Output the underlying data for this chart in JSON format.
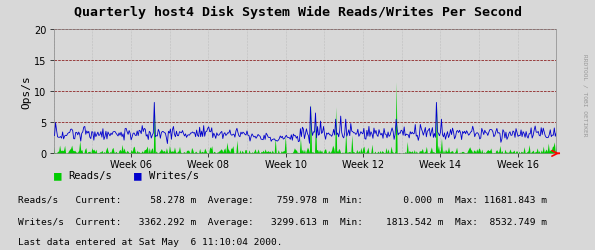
{
  "title": "Quarterly host4 Disk System Wide Reads/Writes Per Second",
  "ylabel": "Ops/s",
  "ylim": [
    0,
    20
  ],
  "yticks": [
    0,
    5,
    10,
    15,
    20
  ],
  "bg_color": "#d8d8d8",
  "plot_bg_color": "#d8d8d8",
  "grid_color_h": "#800000",
  "grid_color_v": "#aaaaaa",
  "reads_color": "#00cc00",
  "writes_color": "#0000cc",
  "week_labels": [
    "Week 06",
    "Week 08",
    "Week 10",
    "Week 12",
    "Week 14",
    "Week 16"
  ],
  "right_label": "RRDTOOL / TOBI OETIKER",
  "legend_reads": "Reads/s",
  "legend_writes": "Writes/s",
  "stats_reads": "Reads/s   Current:     58.278 m  Average:    759.978 m  Min:       0.000 m  Max: 11681.843 m",
  "stats_writes": "Writes/s  Current:   3362.292 m  Average:   3299.613 m  Min:    1813.542 m  Max:  8532.749 m",
  "last_data": "Last data entered at Sat May  6 11:10:04 2000.",
  "num_points": 500,
  "num_weeks": 13
}
